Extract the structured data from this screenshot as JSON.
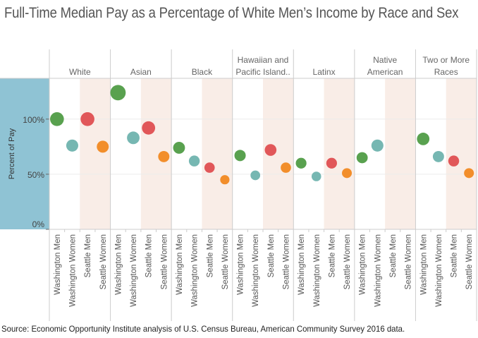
{
  "title": "Full-Time Median Pay as a Percentage of White Men’s Income by Race and Sex",
  "source": "Source: Economic Opportunity Institute analysis of U.S. Census Bureau, American Community Survey 2016 data.",
  "chart_data": {
    "type": "scatter",
    "ylabel": "Percent of Pay",
    "ylim": [
      0,
      137
    ],
    "yticks": [
      0,
      50,
      100
    ],
    "ytick_labels": [
      "0%",
      "50%",
      "100%"
    ],
    "grid": true,
    "groups": [
      {
        "label": [
          "White"
        ],
        "values": [
          100,
          76,
          100,
          75
        ]
      },
      {
        "label": [
          "Asian"
        ],
        "values": [
          124,
          83,
          92,
          66
        ]
      },
      {
        "label": [
          "Black"
        ],
        "values": [
          74,
          62,
          56,
          45
        ]
      },
      {
        "label": [
          "Hawaiian and",
          "Pacific Island.."
        ],
        "values": [
          67,
          49,
          72,
          56
        ]
      },
      {
        "label": [
          "Latinx"
        ],
        "values": [
          60,
          48,
          60,
          51
        ]
      },
      {
        "label": [
          "Native",
          "American"
        ],
        "values": [
          65,
          76,
          null,
          null
        ]
      },
      {
        "label": [
          "Two or More",
          "Races"
        ],
        "values": [
          82,
          66,
          62,
          51
        ]
      }
    ],
    "categories": [
      "Washington Men",
      "Washington Women",
      "Seattle Men",
      "Seattle Women"
    ],
    "colors": [
      "#59a14f",
      "#76b7b2",
      "#e15759",
      "#f28e2b"
    ],
    "seattle_band_color": "#f9ede7",
    "axis_panel_color": "#8fc3d4",
    "marker_size_encodes": "value"
  }
}
